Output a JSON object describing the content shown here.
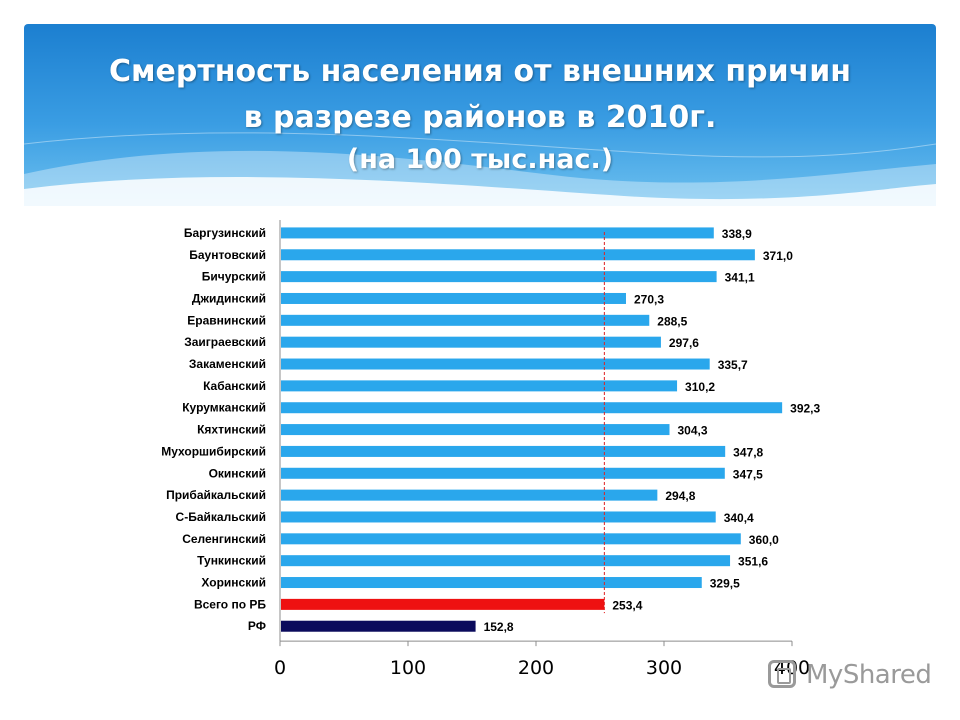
{
  "header": {
    "title_line1": "Смертность населения от внешних причин",
    "title_line2": "в разрезе районов в 2010г.",
    "title_line3": "(на 100 тыс.нас.)"
  },
  "chart_data": {
    "type": "bar",
    "orientation": "horizontal",
    "categories": [
      "Баргузинский",
      "Баунтовский",
      "Бичурский",
      "Джидинский",
      "Еравнинский",
      "Заиграевский",
      "Закаменский",
      "Кабанский",
      "Курумканский",
      "Кяхтинский",
      "Мухоршибирский",
      "Окинский",
      "Прибайкальский",
      "С-Байкальский",
      "Селенгинский",
      "Тункинский",
      "Хоринский",
      "Всего по РБ",
      "РФ"
    ],
    "values": [
      338.9,
      371.0,
      341.1,
      270.3,
      288.5,
      297.6,
      335.7,
      310.2,
      392.3,
      304.3,
      347.8,
      347.5,
      294.8,
      340.4,
      360.0,
      351.6,
      329.5,
      253.4,
      152.8
    ],
    "value_labels": [
      "338,9",
      "371,0",
      "341,1",
      "270,3",
      "288,5",
      "297,6",
      "335,7",
      "310,2",
      "392,3",
      "304,3",
      "347,8",
      "347,5",
      "294,8",
      "340,4",
      "360,0",
      "351,6",
      "329,5",
      "253,4",
      "152,8"
    ],
    "colors": [
      "#2aa7ec",
      "#2aa7ec",
      "#2aa7ec",
      "#2aa7ec",
      "#2aa7ec",
      "#2aa7ec",
      "#2aa7ec",
      "#2aa7ec",
      "#2aa7ec",
      "#2aa7ec",
      "#2aa7ec",
      "#2aa7ec",
      "#2aa7ec",
      "#2aa7ec",
      "#2aa7ec",
      "#2aa7ec",
      "#2aa7ec",
      "#ee1111",
      "#0a0a5c"
    ],
    "xlim": [
      0,
      400
    ],
    "xticks": [
      0,
      100,
      200,
      300,
      400
    ],
    "xtick_labels": [
      "0",
      "100",
      "200",
      "300",
      "400"
    ],
    "reference_line": {
      "value": 253.4,
      "style": "dashed",
      "color": "#e02020"
    },
    "grid": false,
    "legend": "none"
  },
  "watermark": {
    "text": "MyShared"
  }
}
